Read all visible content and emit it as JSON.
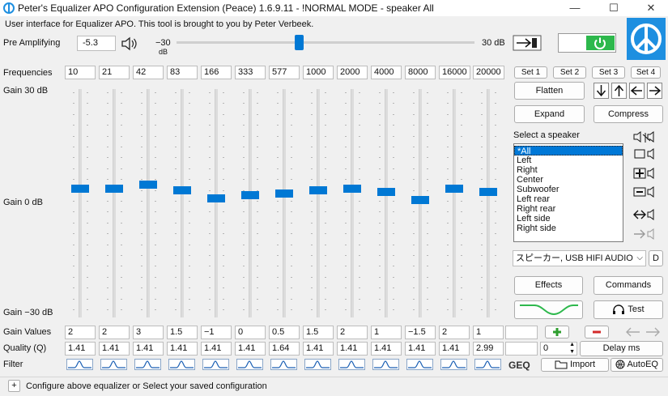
{
  "window": {
    "title": "Peter's Equalizer APO Configuration Extension (Peace) 1.6.9.11 - !NORMAL MODE - speaker All",
    "minimize_glyph": "—",
    "maximize_glyph": "☐",
    "close_glyph": "✕"
  },
  "subtitle": "User interface for Equalizer APO. This tool is brought to you by Peter Verbeek.",
  "preamp": {
    "label": "Pre Amplifying",
    "value": "-5.3",
    "min_label": "−30",
    "min_unit": "dB",
    "max_label": "30 dB",
    "level_db": -5.3
  },
  "eq": {
    "frequencies_label": "Frequencies",
    "gain_top": "Gain 30 dB",
    "gain_mid": "Gain 0 dB",
    "gain_bottom": "Gain −30 dB",
    "gain_values_label": "Gain Values",
    "quality_label": "Quality (Q)",
    "filter_label": "Filter",
    "frequencies": [
      "10",
      "21",
      "42",
      "83",
      "166",
      "333",
      "577",
      "1000",
      "2000",
      "4000",
      "8000",
      "16000",
      "20000"
    ],
    "gains": [
      "2",
      "2",
      "3",
      "1.5",
      "−1",
      "0",
      "0.5",
      "1.5",
      "2",
      "1",
      "−1.5",
      "2",
      "1"
    ],
    "gain_numbers": [
      2,
      2,
      3,
      1.5,
      -1,
      0,
      0.5,
      1.5,
      2,
      1,
      -1.5,
      2,
      1
    ],
    "qualities": [
      "1.41",
      "1.41",
      "1.41",
      "1.41",
      "1.41",
      "1.41",
      "1.64",
      "1.41",
      "1.41",
      "1.41",
      "1.41",
      "1.41",
      "2.99"
    ]
  },
  "sets": [
    "Set 1",
    "Set 2",
    "Set 3",
    "Set 4"
  ],
  "buttons": {
    "flatten": "Flatten",
    "expand": "Expand",
    "compress": "Compress",
    "effects": "Effects",
    "commands": "Commands",
    "test": "Test",
    "delay": "Delay ms",
    "import": "Import",
    "autoeq": "AutoEQ",
    "geq": "GEQ",
    "d": "D"
  },
  "speakers": {
    "label": "Select a speaker",
    "items": [
      "*All",
      "Left",
      "Right",
      "Center",
      "Subwoofer",
      "Left rear",
      "Right rear",
      "Left side",
      "Right side"
    ],
    "selected": "*All",
    "device": "スピーカー, USB HIFI AUDIO"
  },
  "delay_value": "0",
  "status": {
    "plus": "+",
    "text": "Configure above equalizer or Select your saved configuration"
  },
  "colors": {
    "accent": "#0078d4",
    "power_green": "#2db84c",
    "plus_green": "#2e9e2e",
    "minus_red": "#d42a2a",
    "logo_blue": "#1e8fe0"
  }
}
